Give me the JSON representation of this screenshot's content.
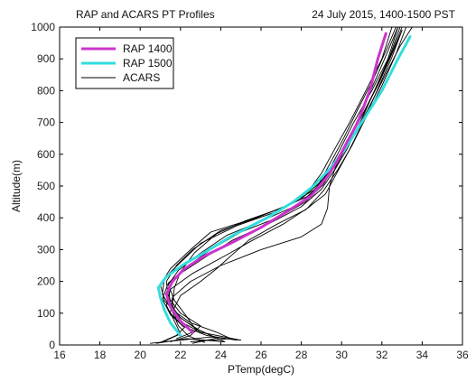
{
  "chart_data": {
    "type": "line",
    "title_left": "RAP and ACARS PT Profiles",
    "title_right": "24 July 2015, 1400-1500 PST",
    "xlabel": "PTemp(degC)",
    "ylabel": "Altitude(m)",
    "xlim": [
      16,
      36
    ],
    "ylim": [
      0,
      1000
    ],
    "xticks": [
      16,
      18,
      20,
      22,
      24,
      26,
      28,
      30,
      32,
      34,
      36
    ],
    "yticks": [
      0,
      100,
      200,
      300,
      400,
      500,
      600,
      700,
      800,
      900,
      1000
    ],
    "legend_position": "top-left",
    "series": [
      {
        "name": "RAP 1400",
        "color": "#cc33cc",
        "points": [
          [
            22.6,
            40
          ],
          [
            22.0,
            75
          ],
          [
            21.5,
            120
          ],
          [
            21.3,
            160
          ],
          [
            21.6,
            200
          ],
          [
            22.2,
            240
          ],
          [
            23.2,
            280
          ],
          [
            24.5,
            320
          ],
          [
            26.0,
            370
          ],
          [
            27.3,
            420
          ],
          [
            28.5,
            470
          ],
          [
            29.3,
            530
          ],
          [
            29.8,
            580
          ],
          [
            30.2,
            630
          ],
          [
            30.8,
            700
          ],
          [
            31.4,
            800
          ],
          [
            31.8,
            900
          ],
          [
            32.2,
            980
          ]
        ]
      },
      {
        "name": "RAP 1500",
        "color": "#33dddd",
        "points": [
          [
            22.0,
            30
          ],
          [
            21.5,
            70
          ],
          [
            21.2,
            110
          ],
          [
            21.0,
            150
          ],
          [
            20.9,
            180
          ],
          [
            21.3,
            215
          ],
          [
            22.2,
            255
          ],
          [
            23.3,
            295
          ],
          [
            24.6,
            345
          ],
          [
            26.3,
            400
          ],
          [
            27.6,
            450
          ],
          [
            28.6,
            500
          ],
          [
            29.5,
            560
          ],
          [
            30.2,
            620
          ],
          [
            31.0,
            700
          ],
          [
            32.0,
            800
          ],
          [
            32.8,
            900
          ],
          [
            33.4,
            970
          ]
        ]
      },
      {
        "name": "ACARS",
        "color": "#000000",
        "points": [
          [
            20.5,
            5
          ],
          [
            22.0,
            15
          ],
          [
            23.5,
            25
          ],
          [
            25.0,
            15
          ],
          [
            23.0,
            40
          ],
          [
            21.8,
            80
          ],
          [
            21.6,
            130
          ],
          [
            21.7,
            180
          ],
          [
            22.0,
            230
          ],
          [
            22.7,
            290
          ],
          [
            23.8,
            350
          ],
          [
            25.2,
            390
          ],
          [
            27.0,
            430
          ],
          [
            28.4,
            470
          ],
          [
            29.2,
            530
          ],
          [
            29.8,
            600
          ],
          [
            30.6,
            700
          ],
          [
            31.5,
            800
          ],
          [
            32.3,
            900
          ],
          [
            32.8,
            1000
          ]
        ]
      },
      {
        "name": "",
        "color": "#000000",
        "points": [
          [
            21.5,
            10
          ],
          [
            22.5,
            30
          ],
          [
            23.0,
            60
          ],
          [
            22.0,
            100
          ],
          [
            21.4,
            150
          ],
          [
            21.3,
            200
          ],
          [
            21.8,
            250
          ],
          [
            22.6,
            300
          ],
          [
            24.0,
            360
          ],
          [
            25.8,
            400
          ],
          [
            27.5,
            445
          ],
          [
            28.7,
            490
          ],
          [
            29.5,
            560
          ],
          [
            30.2,
            630
          ],
          [
            31.0,
            720
          ],
          [
            31.8,
            820
          ],
          [
            32.5,
            920
          ],
          [
            33.0,
            1000
          ]
        ]
      },
      {
        "name": "",
        "color": "#000000",
        "points": [
          [
            20.8,
            5
          ],
          [
            22.3,
            20
          ],
          [
            24.2,
            10
          ],
          [
            22.8,
            50
          ],
          [
            21.9,
            90
          ],
          [
            21.2,
            140
          ],
          [
            21.0,
            190
          ],
          [
            21.5,
            240
          ],
          [
            22.5,
            300
          ],
          [
            23.5,
            355
          ],
          [
            25.5,
            395
          ],
          [
            27.2,
            435
          ],
          [
            28.3,
            480
          ],
          [
            29.0,
            540
          ],
          [
            29.6,
            610
          ],
          [
            30.4,
            700
          ],
          [
            31.2,
            800
          ],
          [
            32.0,
            900
          ],
          [
            32.5,
            1000
          ]
        ]
      },
      {
        "name": "",
        "color": "#000000",
        "points": [
          [
            21.8,
            20
          ],
          [
            22.8,
            45
          ],
          [
            22.3,
            90
          ],
          [
            21.7,
            140
          ],
          [
            21.4,
            190
          ],
          [
            21.9,
            235
          ],
          [
            22.9,
            285
          ],
          [
            24.3,
            345
          ],
          [
            26.2,
            395
          ],
          [
            27.8,
            440
          ],
          [
            28.8,
            495
          ],
          [
            29.6,
            565
          ],
          [
            30.3,
            640
          ],
          [
            31.1,
            730
          ],
          [
            31.9,
            830
          ],
          [
            32.6,
            930
          ],
          [
            33.0,
            990
          ]
        ]
      },
      {
        "name": "",
        "color": "#000000",
        "points": [
          [
            22.5,
            10
          ],
          [
            24.5,
            20
          ],
          [
            23.8,
            40
          ],
          [
            22.5,
            70
          ],
          [
            21.6,
            110
          ],
          [
            21.1,
            160
          ],
          [
            21.2,
            210
          ],
          [
            22.0,
            260
          ],
          [
            23.0,
            320
          ],
          [
            24.8,
            375
          ],
          [
            26.8,
            420
          ],
          [
            28.0,
            460
          ],
          [
            28.9,
            510
          ],
          [
            29.5,
            580
          ],
          [
            30.1,
            650
          ],
          [
            30.8,
            740
          ],
          [
            31.6,
            840
          ],
          [
            32.3,
            940
          ],
          [
            32.7,
            1000
          ]
        ]
      },
      {
        "name": "",
        "color": "#000000",
        "points": [
          [
            21.0,
            8
          ],
          [
            21.8,
            30
          ],
          [
            22.2,
            55
          ],
          [
            21.5,
            95
          ],
          [
            21.1,
            145
          ],
          [
            21.4,
            195
          ],
          [
            22.3,
            245
          ],
          [
            23.5,
            300
          ],
          [
            25.0,
            355
          ],
          [
            27.0,
            405
          ],
          [
            28.2,
            450
          ],
          [
            29.1,
            505
          ],
          [
            29.9,
            590
          ],
          [
            30.6,
            680
          ],
          [
            31.3,
            780
          ],
          [
            32.0,
            880
          ],
          [
            32.8,
            1000
          ]
        ]
      },
      {
        "name": "",
        "color": "#000000",
        "points": [
          [
            24.8,
            15
          ],
          [
            23.3,
            30
          ],
          [
            22.1,
            60
          ],
          [
            21.5,
            100
          ],
          [
            21.6,
            150
          ],
          [
            22.5,
            200
          ],
          [
            24.0,
            250
          ],
          [
            26.0,
            300
          ],
          [
            28.0,
            340
          ],
          [
            29.0,
            380
          ],
          [
            29.3,
            430
          ],
          [
            29.4,
            500
          ],
          [
            29.7,
            560
          ],
          [
            30.4,
            640
          ],
          [
            31.3,
            740
          ],
          [
            32.1,
            840
          ],
          [
            32.9,
            940
          ],
          [
            33.5,
            1000
          ]
        ]
      },
      {
        "name": "",
        "color": "#000000",
        "points": [
          [
            22.6,
            5
          ],
          [
            23.8,
            22
          ],
          [
            22.9,
            48
          ],
          [
            22.0,
            85
          ],
          [
            21.5,
            130
          ],
          [
            21.4,
            180
          ],
          [
            22.0,
            225
          ],
          [
            23.2,
            275
          ],
          [
            24.6,
            330
          ],
          [
            26.5,
            385
          ],
          [
            28.0,
            435
          ],
          [
            29.0,
            490
          ],
          [
            29.7,
            555
          ],
          [
            30.3,
            620
          ],
          [
            31.0,
            710
          ],
          [
            31.7,
            810
          ],
          [
            32.4,
            910
          ],
          [
            32.9,
            1000
          ]
        ]
      },
      {
        "name": "",
        "color": "#000000",
        "points": [
          [
            21.2,
            12
          ],
          [
            22.0,
            35
          ],
          [
            21.7,
            75
          ],
          [
            21.3,
            125
          ],
          [
            21.5,
            175
          ],
          [
            22.6,
            225
          ],
          [
            24.2,
            280
          ],
          [
            25.6,
            330
          ],
          [
            27.1,
            380
          ],
          [
            28.3,
            430
          ],
          [
            29.1,
            485
          ],
          [
            29.8,
            550
          ],
          [
            30.5,
            625
          ],
          [
            31.2,
            715
          ],
          [
            32.0,
            815
          ],
          [
            32.7,
            915
          ],
          [
            33.2,
            1000
          ]
        ]
      },
      {
        "name": "",
        "color": "#000000",
        "points": [
          [
            23.2,
            8
          ],
          [
            22.4,
            28
          ],
          [
            21.9,
            60
          ],
          [
            21.6,
            105
          ],
          [
            22.0,
            155
          ],
          [
            23.0,
            200
          ],
          [
            23.8,
            240
          ],
          [
            24.5,
            280
          ],
          [
            25.4,
            330
          ],
          [
            26.8,
            380
          ],
          [
            28.2,
            425
          ],
          [
            29.2,
            475
          ],
          [
            29.8,
            545
          ],
          [
            30.4,
            615
          ],
          [
            31.1,
            705
          ],
          [
            31.8,
            805
          ],
          [
            32.5,
            905
          ],
          [
            33.0,
            990
          ]
        ]
      }
    ]
  }
}
